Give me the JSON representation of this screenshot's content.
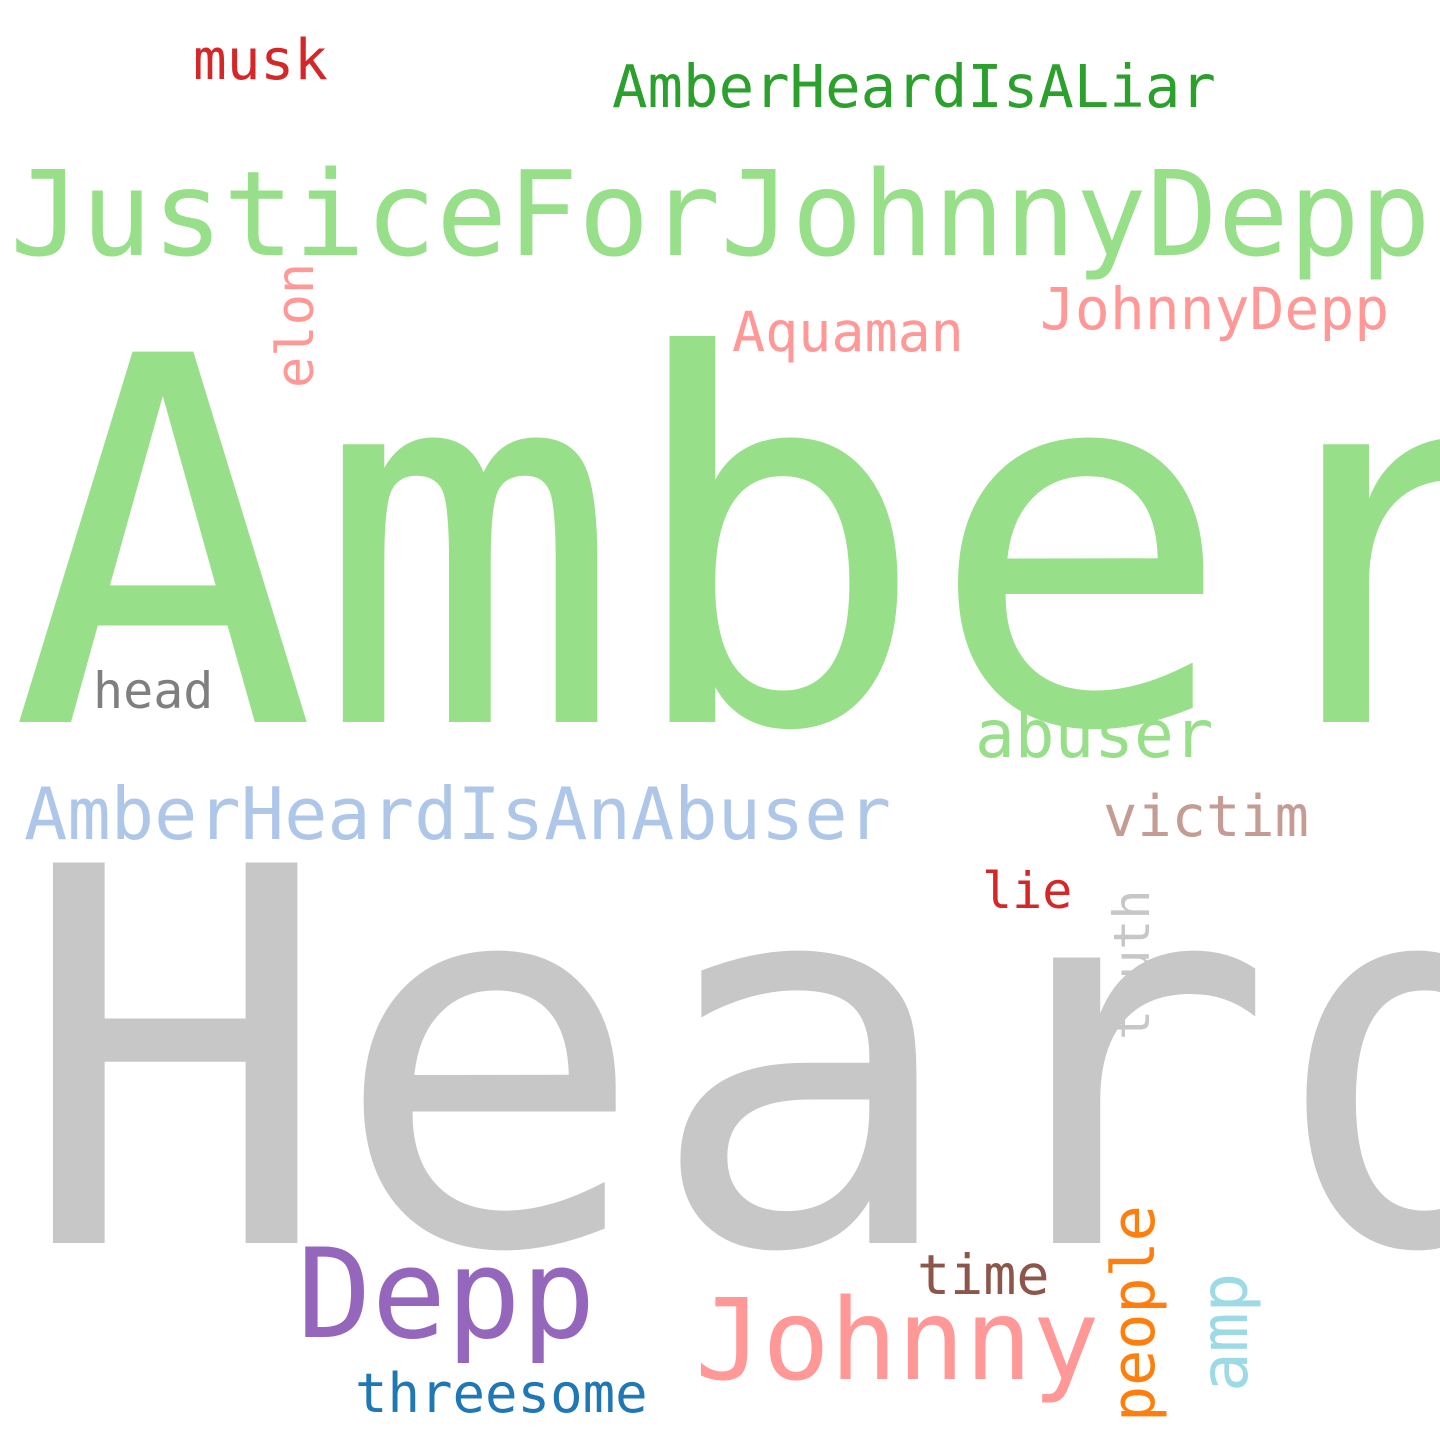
{
  "background": "#ffffff",
  "words": [
    {
      "id": "amber",
      "text": "Amber",
      "color": "#98df8a",
      "orientation": "horizontal"
    },
    {
      "id": "heard",
      "text": "Heard",
      "color": "#c7c7c7",
      "orientation": "horizontal"
    },
    {
      "id": "justice",
      "text": "JusticeForJohnnyDepp",
      "color": "#98df8a",
      "orientation": "horizontal"
    },
    {
      "id": "liar",
      "text": "AmberHeardIsALiar",
      "color": "#2ca02c",
      "orientation": "horizontal"
    },
    {
      "id": "abuser-tag",
      "text": "AmberHeardIsAnAbuser",
      "color": "#aec7e8",
      "orientation": "horizontal"
    },
    {
      "id": "musk",
      "text": "musk",
      "color": "#d62728",
      "orientation": "horizontal"
    },
    {
      "id": "johnnydepp",
      "text": "JohnnyDepp",
      "color": "#ff9896",
      "orientation": "horizontal"
    },
    {
      "id": "aquaman",
      "text": "Aquaman",
      "color": "#ff9896",
      "orientation": "horizontal"
    },
    {
      "id": "elon",
      "text": "elon",
      "color": "#ff9896",
      "orientation": "vertical"
    },
    {
      "id": "head",
      "text": "head",
      "color": "#7f7f7f",
      "orientation": "horizontal"
    },
    {
      "id": "abuser",
      "text": "abuser",
      "color": "#98df8a",
      "orientation": "horizontal"
    },
    {
      "id": "victim",
      "text": "victim",
      "color": "#c49c94",
      "orientation": "horizontal"
    },
    {
      "id": "lie",
      "text": "lie",
      "color": "#d62728",
      "orientation": "horizontal"
    },
    {
      "id": "truth",
      "text": "truth",
      "color": "#c7c7c7",
      "orientation": "vertical"
    },
    {
      "id": "depp",
      "text": "Depp",
      "color": "#9467bd",
      "orientation": "horizontal"
    },
    {
      "id": "johnny",
      "text": "Johnny",
      "color": "#ff9896",
      "orientation": "horizontal"
    },
    {
      "id": "time",
      "text": "time",
      "color": "#8c564b",
      "orientation": "horizontal"
    },
    {
      "id": "people",
      "text": "people",
      "color": "#ff7f0e",
      "orientation": "vertical"
    },
    {
      "id": "amp",
      "text": "amp",
      "color": "#9edae5",
      "orientation": "vertical"
    },
    {
      "id": "threesome",
      "text": "threesome",
      "color": "#1f77b4",
      "orientation": "horizontal"
    }
  ]
}
